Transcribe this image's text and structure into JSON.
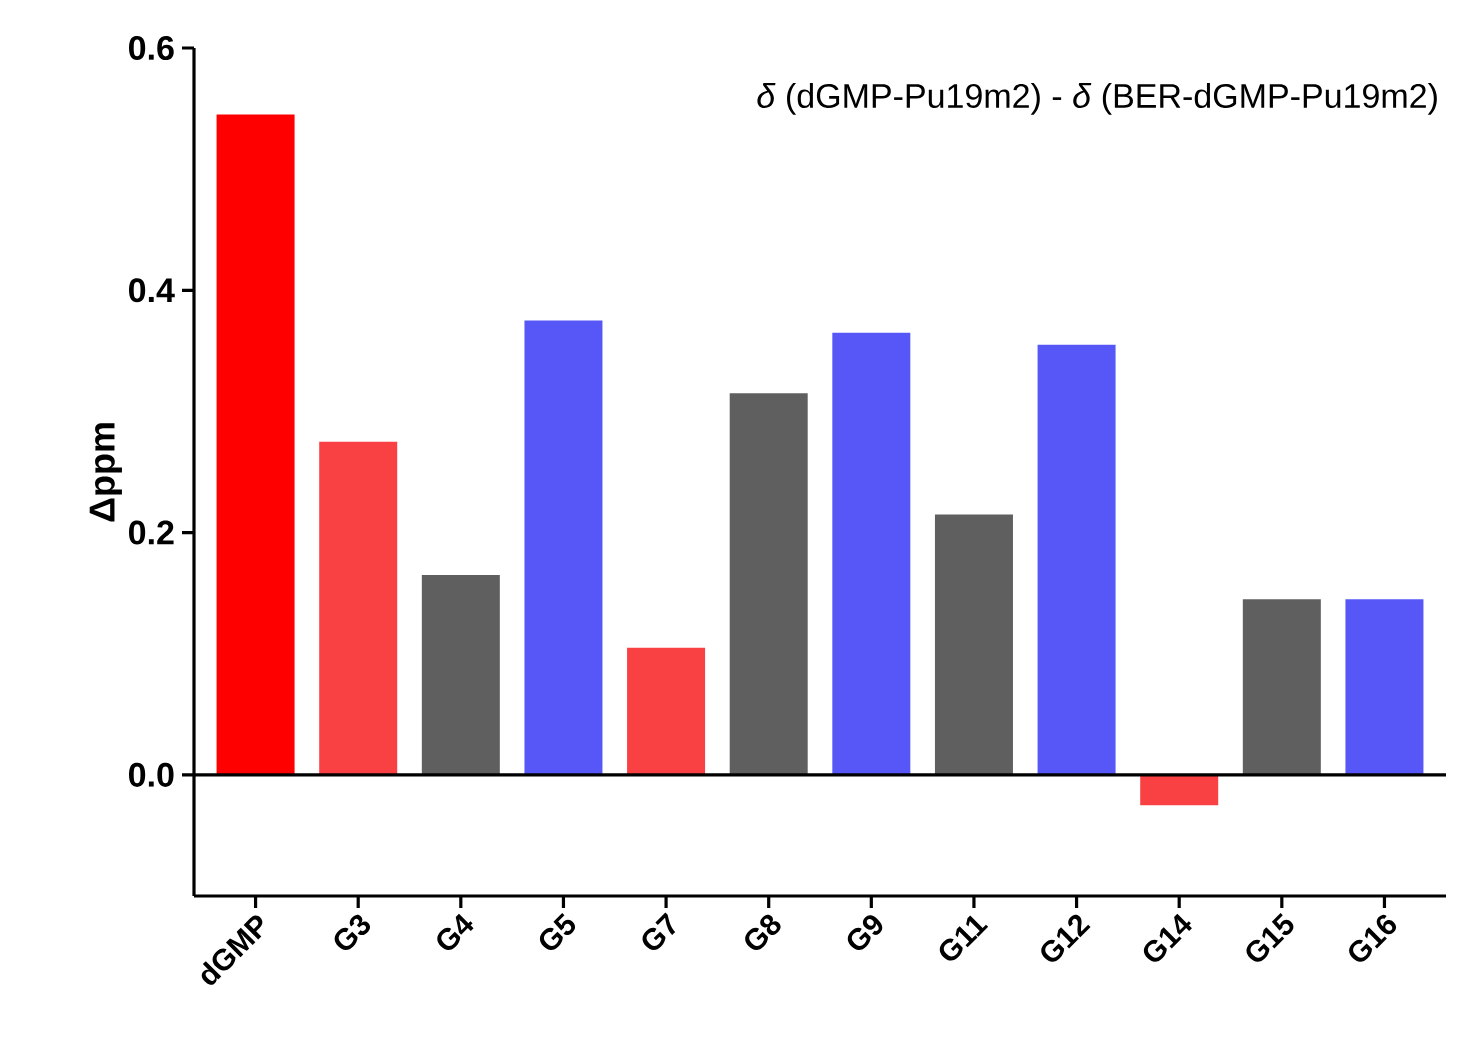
{
  "chart_data": {
    "type": "bar",
    "ylabel": "Δppm",
    "annotations": [
      "*δ* (dGMP-Pu19m2) - *δ* (BER-dGMP-Pu19m2)"
    ],
    "categories": [
      "dGMP",
      "G3",
      "G4",
      "G5",
      "G7",
      "G8",
      "G9",
      "G11",
      "G12",
      "G14",
      "G15",
      "G16"
    ],
    "values": [
      0.545,
      0.275,
      0.165,
      0.375,
      0.105,
      0.315,
      0.365,
      0.215,
      0.355,
      -0.025,
      0.145,
      0.145
    ],
    "colors": [
      "#ff0000",
      "#f94144",
      "#5f5f5f",
      "#5757f7",
      "#f94144",
      "#5f5f5f",
      "#5757f7",
      "#5f5f5f",
      "#5757f7",
      "#f94144",
      "#5f5f5f",
      "#5757f7"
    ],
    "ylim": [
      -0.1,
      0.6
    ],
    "yticks": [
      {
        "value": 0,
        "label": "0.0"
      },
      0.2,
      0.4,
      0.6
    ],
    "ref_lines": [
      {
        "axis": "y",
        "value": 0
      }
    ],
    "grid": false
  }
}
